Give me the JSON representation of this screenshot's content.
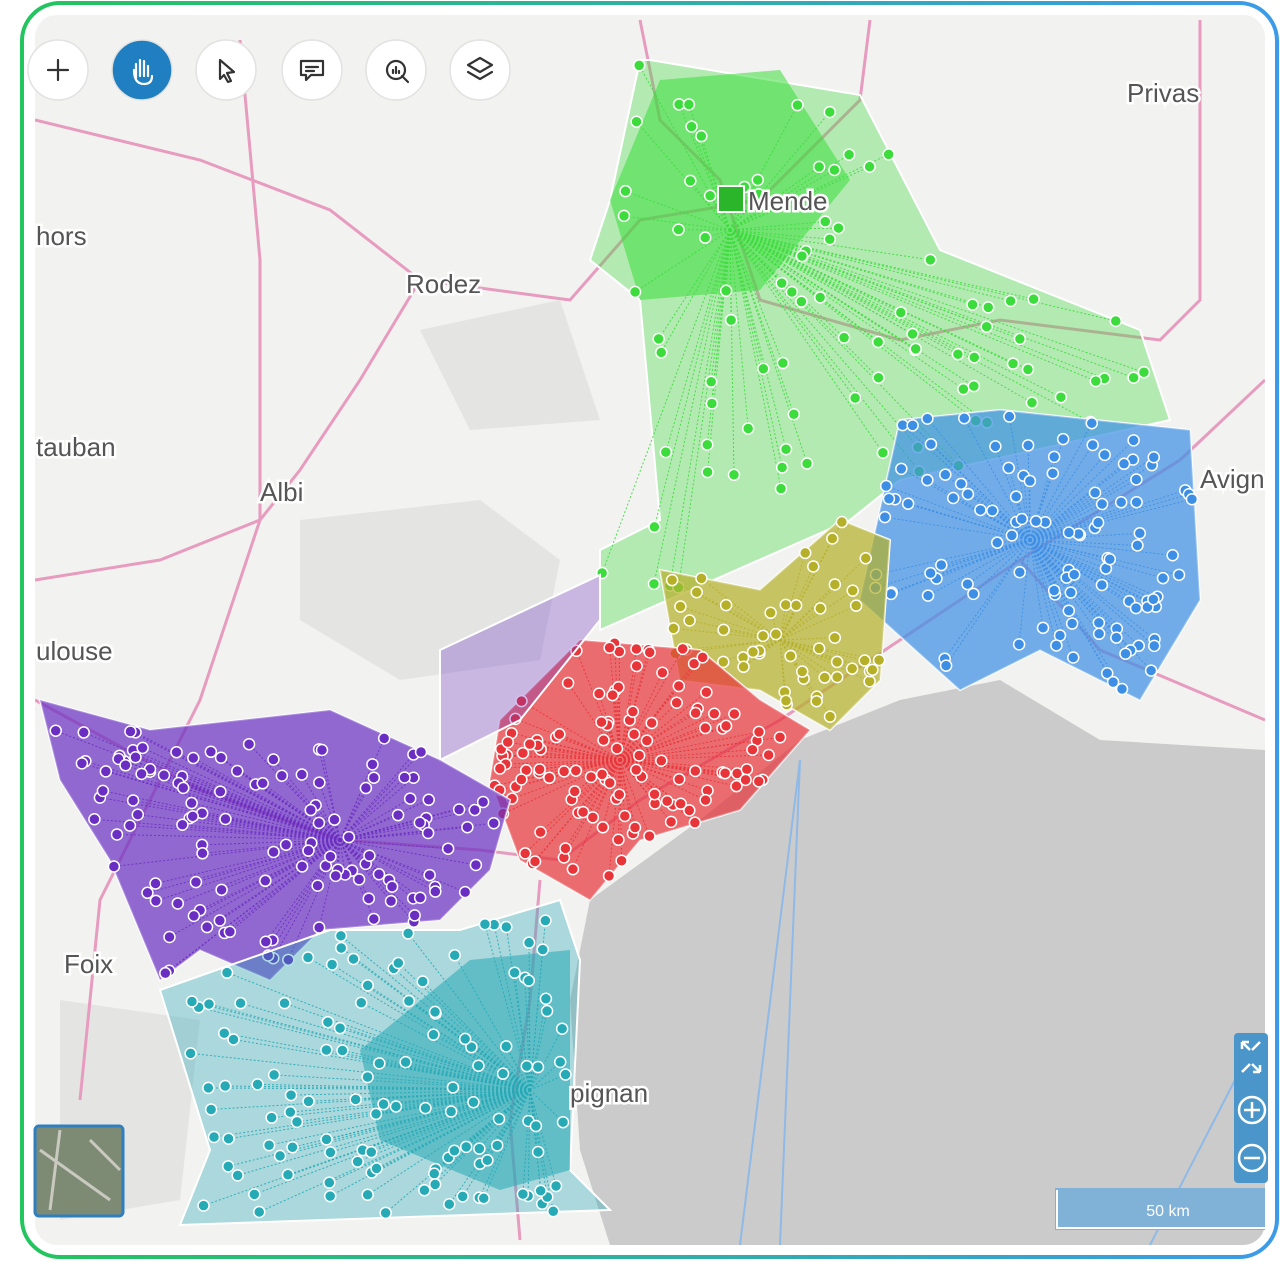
{
  "map": {
    "labels": [
      "Privas",
      "Mende",
      "hors",
      "Rodez",
      "tauban",
      "Albi",
      "Avign",
      "ulouse",
      "Foix",
      "pignan"
    ],
    "scale": "50 km"
  }
}
